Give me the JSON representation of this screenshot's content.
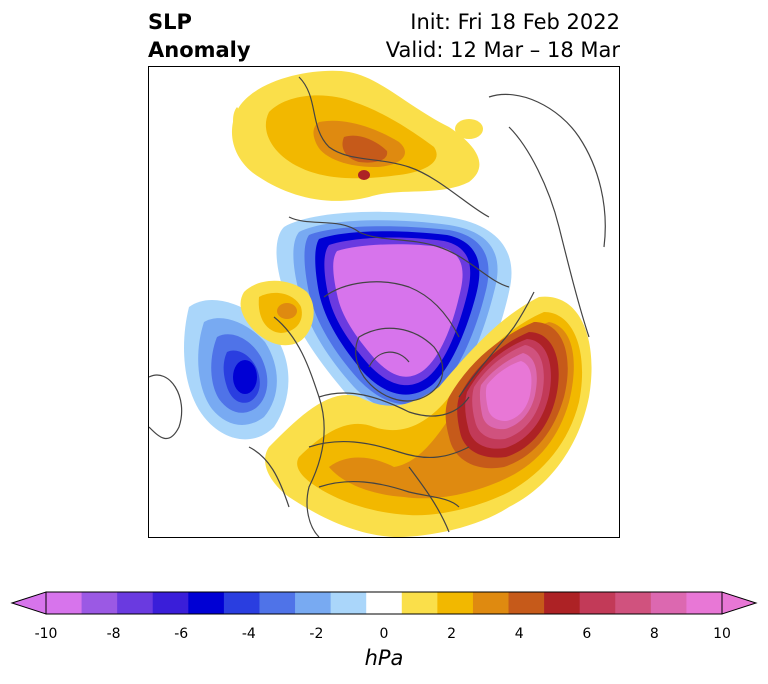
{
  "header": {
    "title_line1": "SLP",
    "title_line2": "Anomaly",
    "init_line": "Init: Fri 18 Feb 2022",
    "valid_line": "Valid: 12 Mar – 18 Mar"
  },
  "colorbar": {
    "unit": "hPa",
    "tick_labels": [
      "-10",
      "-8",
      "-6",
      "-4",
      "-2",
      "0",
      "2",
      "4",
      "6",
      "8",
      "10"
    ],
    "levels": [
      -10,
      -9,
      -8,
      -7,
      -6,
      -5,
      -4,
      -3,
      -2,
      -1,
      1,
      2,
      3,
      4,
      5,
      6,
      7,
      8,
      9,
      10
    ],
    "colors": [
      "#d774ec",
      "#9b59e4",
      "#6a3ae0",
      "#3a1ed9",
      "#0000d4",
      "#2a3ee0",
      "#4f73e8",
      "#78aaf2",
      "#aad6fa",
      "#ffffff",
      "#fadf4a",
      "#f2b800",
      "#df8a10",
      "#c65a1a",
      "#ad2225",
      "#c23a58",
      "#d0527e",
      "#dc68b0",
      "#e877d6"
    ],
    "extend": "both"
  },
  "map": {
    "projection": "polar stereographic, north pole",
    "coastline_color": "#444444"
  }
}
